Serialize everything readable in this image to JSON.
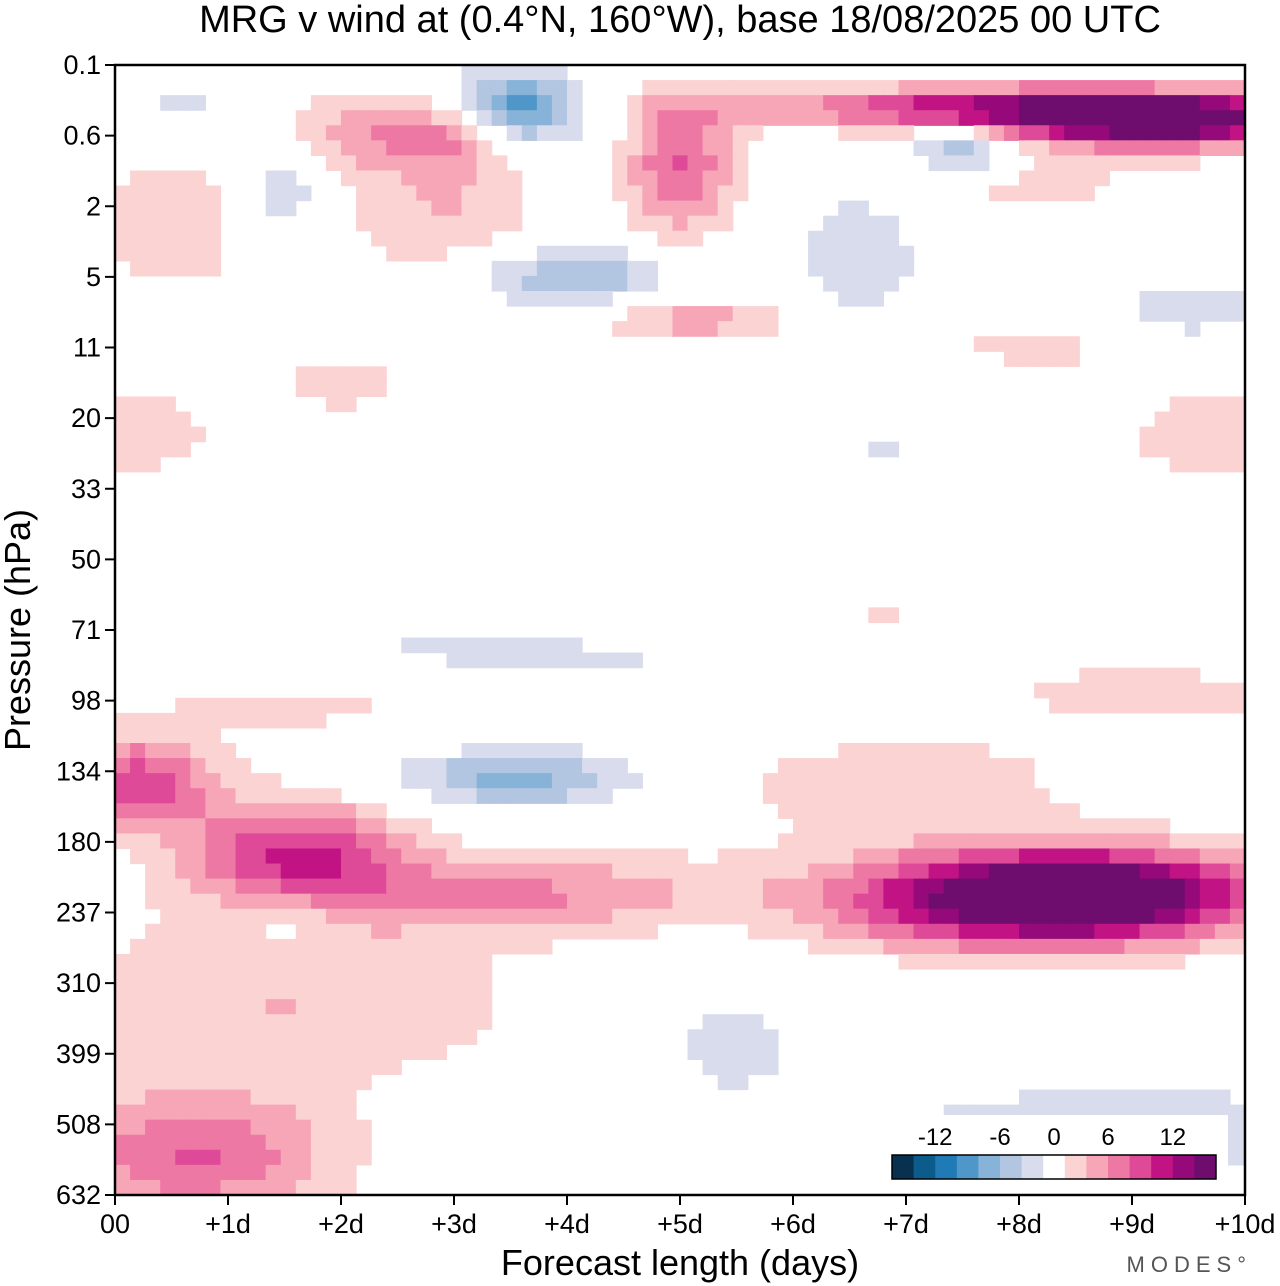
{
  "chart_data": {
    "type": "heatmap",
    "title": "MRG v wind at (0.4°N, 160°W),  base 18/08/2025  00 UTC",
    "xlabel": "Forecast length (days)",
    "ylabel": "Pressure (hPa)",
    "x_ticks": [
      "00",
      "+1d",
      "+2d",
      "+3d",
      "+4d",
      "+5d",
      "+6d",
      "+7d",
      "+8d",
      "+9d",
      "+10d"
    ],
    "y_ticks": [
      "0.1",
      "0.6",
      "2",
      "5",
      "11",
      "20",
      "33",
      "50",
      "71",
      "98",
      "134",
      "180",
      "237",
      "310",
      "399",
      "508",
      "632"
    ],
    "xlim": [
      0,
      10
    ],
    "y_scale": "log, inverted",
    "colorbar": {
      "labels": [
        "-12",
        "-6",
        "0",
        "6",
        "12"
      ],
      "levels": [
        -14,
        -12,
        -10,
        -8,
        -6,
        -4,
        -2,
        2,
        4,
        6,
        8,
        10,
        12,
        14
      ],
      "colors": [
        "#08304f",
        "#0b5c8a",
        "#1f7ab5",
        "#4e97c8",
        "#88b3d8",
        "#b2c5e1",
        "#d9dcec",
        "#ffffff",
        "#fbd3d3",
        "#f7a6b7",
        "#ee78a4",
        "#df4a98",
        "#c21384",
        "#96097a",
        "#6e0d6e"
      ]
    },
    "anomalies": [
      {
        "x": 1.6,
        "p": 190,
        "amp": 10,
        "sx": 0.7,
        "sy": 0.35
      },
      {
        "x": 0.2,
        "p": 140,
        "amp": 9,
        "sx": 0.5,
        "sy": 0.3
      },
      {
        "x": 3.6,
        "p": 220,
        "amp": 6,
        "sx": 1.2,
        "sy": 0.25
      },
      {
        "x": 1.5,
        "p": 330,
        "amp": 4,
        "sx": 1.6,
        "sy": 0.55
      },
      {
        "x": 0.7,
        "p": 560,
        "amp": 8,
        "sx": 0.9,
        "sy": 0.4
      },
      {
        "x": 1.5,
        "p": 240,
        "amp": -3,
        "sx": 0.35,
        "sy": 0.2
      },
      {
        "x": 3.6,
        "p": 138,
        "amp": -7,
        "sx": 0.75,
        "sy": 0.18
      },
      {
        "x": 8.6,
        "p": 220,
        "amp": 15,
        "sx": 1.1,
        "sy": 0.28
      },
      {
        "x": 7.8,
        "p": 230,
        "amp": 8,
        "sx": 1.3,
        "sy": 0.3
      },
      {
        "x": 6.9,
        "p": 140,
        "amp": 3,
        "sx": 1.4,
        "sy": 0.45
      },
      {
        "x": 5.4,
        "p": 380,
        "amp": -2.5,
        "sx": 0.6,
        "sy": 0.45
      },
      {
        "x": 8.9,
        "p": 520,
        "amp": -3,
        "sx": 2.0,
        "sy": 0.4
      },
      {
        "x": 3.5,
        "p": 78,
        "amp": -2.5,
        "sx": 2.0,
        "sy": 0.18
      },
      {
        "x": 6.0,
        "p": 100,
        "amp": -2.6,
        "sx": 1.3,
        "sy": 0.2
      },
      {
        "x": 1.6,
        "p": 100,
        "amp": 2.6,
        "sx": 1.0,
        "sy": 0.2
      },
      {
        "x": 9.1,
        "p": 95,
        "amp": 3.5,
        "sx": 1.0,
        "sy": 0.18
      },
      {
        "x": 6.5,
        "p": 68,
        "amp": 2.4,
        "sx": 2.2,
        "sy": 0.12
      },
      {
        "x": 4.0,
        "p": 5,
        "amp": -6,
        "sx": 0.7,
        "sy": 0.2
      },
      {
        "x": 5.1,
        "p": 8,
        "amp": 5,
        "sx": 0.6,
        "sy": 0.14
      },
      {
        "x": 6.6,
        "p": 3.5,
        "amp": -4,
        "sx": 0.4,
        "sy": 0.55
      },
      {
        "x": 3.5,
        "p": 0.3,
        "amp": -10,
        "sx": 0.45,
        "sy": 0.22
      },
      {
        "x": 5.0,
        "p": 1.0,
        "amp": 8,
        "sx": 0.35,
        "sy": 0.45
      },
      {
        "x": 8.5,
        "p": 0.3,
        "amp": 14,
        "sx": 1.8,
        "sy": 0.14
      },
      {
        "x": 9.3,
        "p": 0.5,
        "amp": 11,
        "sx": 0.9,
        "sy": 0.14
      },
      {
        "x": 7.5,
        "p": 0.75,
        "amp": -7,
        "sx": 0.35,
        "sy": 0.16
      },
      {
        "x": 2.9,
        "p": 2.2,
        "amp": 4,
        "sx": 0.65,
        "sy": 0.45
      },
      {
        "x": 2.2,
        "p": 0.55,
        "amp": 5,
        "sx": 0.5,
        "sy": 0.25
      },
      {
        "x": 3.0,
        "p": 0.55,
        "amp": 6,
        "sx": 0.35,
        "sy": 0.22
      },
      {
        "x": 1.5,
        "p": 1.6,
        "amp": -4,
        "sx": 0.3,
        "sy": 0.35
      },
      {
        "x": 0.5,
        "p": 2.5,
        "amp": 3.5,
        "sx": 0.6,
        "sy": 0.5
      },
      {
        "x": 9.5,
        "p": 7.5,
        "amp": -4,
        "sx": 0.5,
        "sy": 0.22
      },
      {
        "x": 9.8,
        "p": 23,
        "amp": 3.5,
        "sx": 0.7,
        "sy": 0.3
      },
      {
        "x": 0.2,
        "p": 22,
        "amp": 3.5,
        "sx": 0.5,
        "sy": 0.3
      },
      {
        "x": 2.0,
        "p": 15,
        "amp": 2.6,
        "sx": 0.6,
        "sy": 0.25
      },
      {
        "x": 0.6,
        "p": 0.3,
        "amp": -3,
        "sx": 0.3,
        "sy": 0.15
      },
      {
        "x": 8.0,
        "p": 1.3,
        "amp": 2.5,
        "sx": 1.2,
        "sy": 0.35
      },
      {
        "x": 8.3,
        "p": 11,
        "amp": 2.3,
        "sx": 1.4,
        "sy": 0.25
      },
      {
        "x": 6.8,
        "p": 25,
        "amp": -2.2,
        "sx": 0.3,
        "sy": 0.18
      }
    ]
  },
  "branding": {
    "text": "MODES°"
  }
}
